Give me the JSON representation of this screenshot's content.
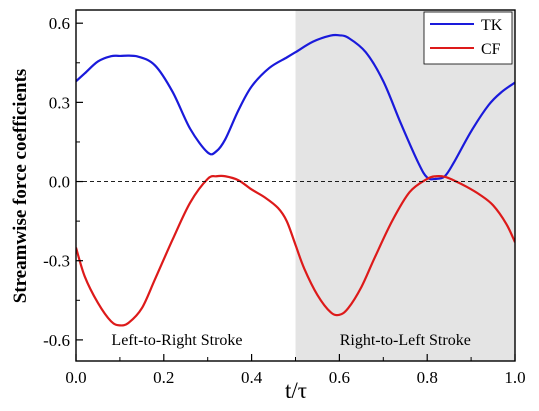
{
  "chart_data": {
    "type": "line",
    "title": "",
    "xlabel": "t/τ",
    "ylabel": "Streamwise force coefficients",
    "xlim": [
      0.0,
      1.0
    ],
    "ylim": [
      -0.68,
      0.65
    ],
    "x_ticks": [
      0.0,
      0.2,
      0.4,
      0.6,
      0.8,
      1.0
    ],
    "x_tick_labels": [
      "0.0",
      "0.2",
      "0.4",
      "0.6",
      "0.8",
      "1.0"
    ],
    "y_ticks": [
      -0.6,
      -0.3,
      0.0,
      0.3,
      0.6
    ],
    "y_tick_labels": [
      "-0.6",
      "-0.3",
      "0.0",
      "0.3",
      "0.6"
    ],
    "grid": false,
    "legend_position": "top-right",
    "reference_line": {
      "y": 0.0,
      "style": "dashed"
    },
    "shaded_region": {
      "x_start": 0.5,
      "x_end": 1.0,
      "color": "#e4e4e4"
    },
    "annotations": [
      {
        "text": "Left-to-Right Stroke",
        "x": 0.23,
        "y": -0.6
      },
      {
        "text": "Right-to-Left Stroke",
        "x": 0.75,
        "y": -0.6
      }
    ],
    "series": [
      {
        "name": "TK",
        "color": "#1a1adb",
        "x": [
          0.0,
          0.02,
          0.05,
          0.08,
          0.1,
          0.14,
          0.18,
          0.22,
          0.26,
          0.3,
          0.32,
          0.34,
          0.37,
          0.4,
          0.44,
          0.48,
          0.5,
          0.54,
          0.58,
          0.6,
          0.62,
          0.66,
          0.7,
          0.74,
          0.78,
          0.8,
          0.82,
          0.84,
          0.86,
          0.9,
          0.94,
          0.97,
          1.0
        ],
        "y": [
          0.38,
          0.41,
          0.455,
          0.475,
          0.476,
          0.474,
          0.44,
          0.34,
          0.2,
          0.11,
          0.115,
          0.16,
          0.27,
          0.36,
          0.43,
          0.47,
          0.49,
          0.53,
          0.553,
          0.554,
          0.545,
          0.49,
          0.38,
          0.22,
          0.07,
          0.015,
          0.01,
          0.02,
          0.07,
          0.19,
          0.29,
          0.34,
          0.375
        ]
      },
      {
        "name": "CF",
        "color": "#dd1a1a",
        "x": [
          0.0,
          0.02,
          0.05,
          0.08,
          0.1,
          0.12,
          0.15,
          0.18,
          0.22,
          0.26,
          0.3,
          0.32,
          0.34,
          0.37,
          0.4,
          0.43,
          0.46,
          0.48,
          0.5,
          0.52,
          0.55,
          0.58,
          0.6,
          0.62,
          0.65,
          0.68,
          0.72,
          0.76,
          0.8,
          0.82,
          0.84,
          0.86,
          0.89,
          0.92,
          0.95,
          0.98,
          1.0
        ],
        "y": [
          -0.25,
          -0.36,
          -0.46,
          -0.53,
          -0.545,
          -0.535,
          -0.48,
          -0.37,
          -0.22,
          -0.08,
          0.01,
          0.02,
          0.02,
          0.005,
          -0.03,
          -0.06,
          -0.1,
          -0.15,
          -0.24,
          -0.33,
          -0.43,
          -0.495,
          -0.505,
          -0.48,
          -0.4,
          -0.29,
          -0.15,
          -0.04,
          0.01,
          0.02,
          0.018,
          0.005,
          -0.02,
          -0.05,
          -0.09,
          -0.16,
          -0.23
        ]
      }
    ]
  }
}
